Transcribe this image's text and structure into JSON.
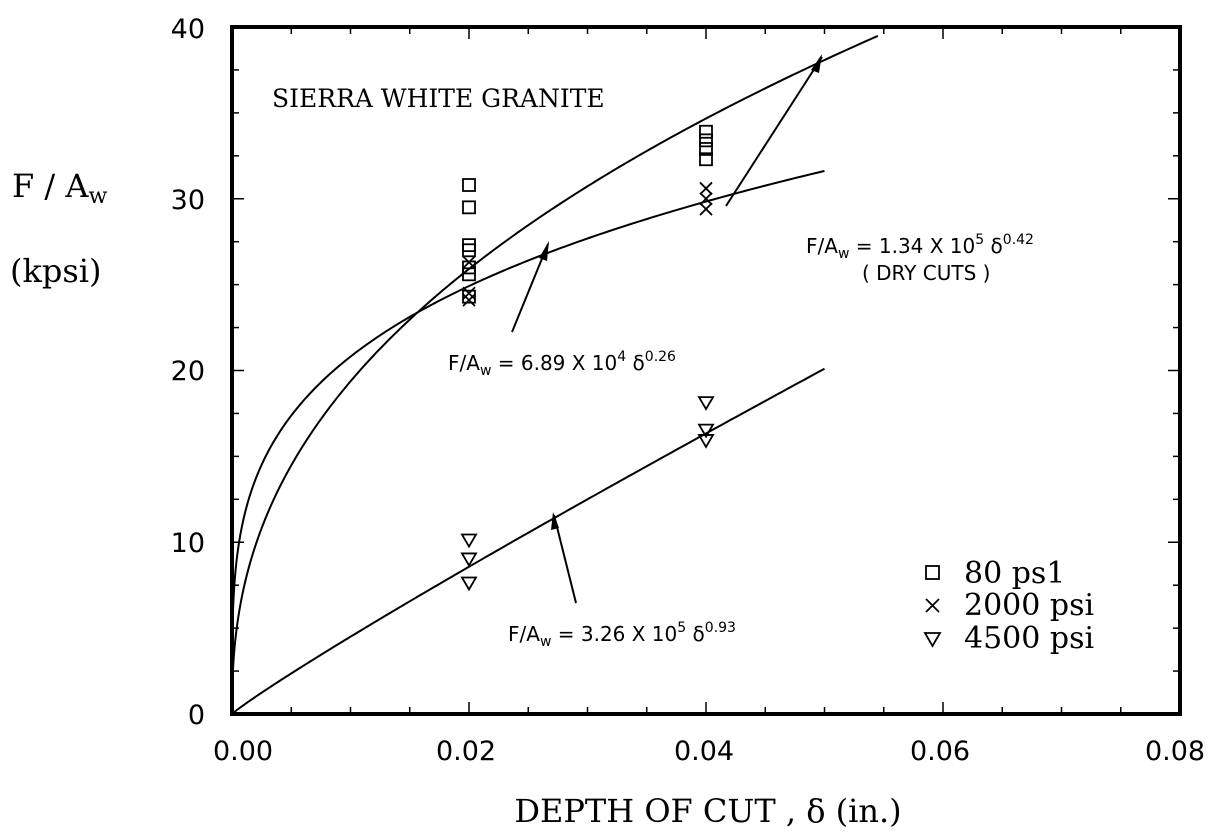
{
  "chart_data": {
    "type": "scatter",
    "title": "SIERRA WHITE GRANITE",
    "xlabel": "DEPTH OF CUT , δ (in.)",
    "ylabel_line1": "F / Aw",
    "ylabel_line2": "(kpsi)",
    "xlim": [
      0.0,
      0.08
    ],
    "ylim": [
      0,
      40
    ],
    "x_ticks": [
      "0.00",
      "0.02",
      "0.04",
      "0.06",
      "0.08"
    ],
    "y_ticks": [
      "0",
      "10",
      "20",
      "30",
      "40"
    ],
    "grid": false,
    "legend_position": "bottom-right",
    "series": [
      {
        "name": "80 ps1",
        "marker": "square",
        "points": [
          [
            0.02,
            30.8
          ],
          [
            0.02,
            29.5
          ],
          [
            0.02,
            27.3
          ],
          [
            0.02,
            27.0
          ],
          [
            0.02,
            26.0
          ],
          [
            0.02,
            25.6
          ],
          [
            0.02,
            24.3
          ],
          [
            0.04,
            33.9
          ],
          [
            0.04,
            33.4
          ],
          [
            0.04,
            32.9
          ],
          [
            0.04,
            32.3
          ]
        ]
      },
      {
        "name": "2000 psi",
        "marker": "x",
        "points": [
          [
            0.02,
            26.3
          ],
          [
            0.02,
            24.5
          ],
          [
            0.02,
            24.1
          ],
          [
            0.04,
            30.6
          ],
          [
            0.04,
            30.0
          ],
          [
            0.04,
            29.4
          ]
        ]
      },
      {
        "name": "4500 psi",
        "marker": "triangle-down",
        "points": [
          [
            0.02,
            10.1
          ],
          [
            0.02,
            9.0
          ],
          [
            0.02,
            7.6
          ],
          [
            0.04,
            18.1
          ],
          [
            0.04,
            16.5
          ],
          [
            0.04,
            15.9
          ]
        ]
      }
    ],
    "fits": [
      {
        "id": "dry",
        "coef": 134000,
        "exp": 0.42,
        "x_max": 0.0545,
        "label_lhs": "F/A",
        "label_sub": "w",
        "label_mid": " = 1.34 X 10",
        "label_pow": "5",
        "label_delta": " δ",
        "label_exp": "0.42",
        "label_note": "( DRY CUTS )"
      },
      {
        "id": "p2000",
        "coef": 68900,
        "exp": 0.26,
        "x_max": 0.05,
        "label_lhs": "F/A",
        "label_sub": "w",
        "label_mid": " = 6.89 X 10",
        "label_pow": "4",
        "label_delta": " δ",
        "label_exp": "0.26",
        "label_note": ""
      },
      {
        "id": "p4500",
        "coef": 326000,
        "exp": 0.93,
        "x_max": 0.05,
        "label_lhs": "F/A",
        "label_sub": "w",
        "label_mid": " = 3.26 X 10",
        "label_pow": "5",
        "label_delta": " δ",
        "label_exp": "0.93",
        "label_note": ""
      }
    ]
  }
}
